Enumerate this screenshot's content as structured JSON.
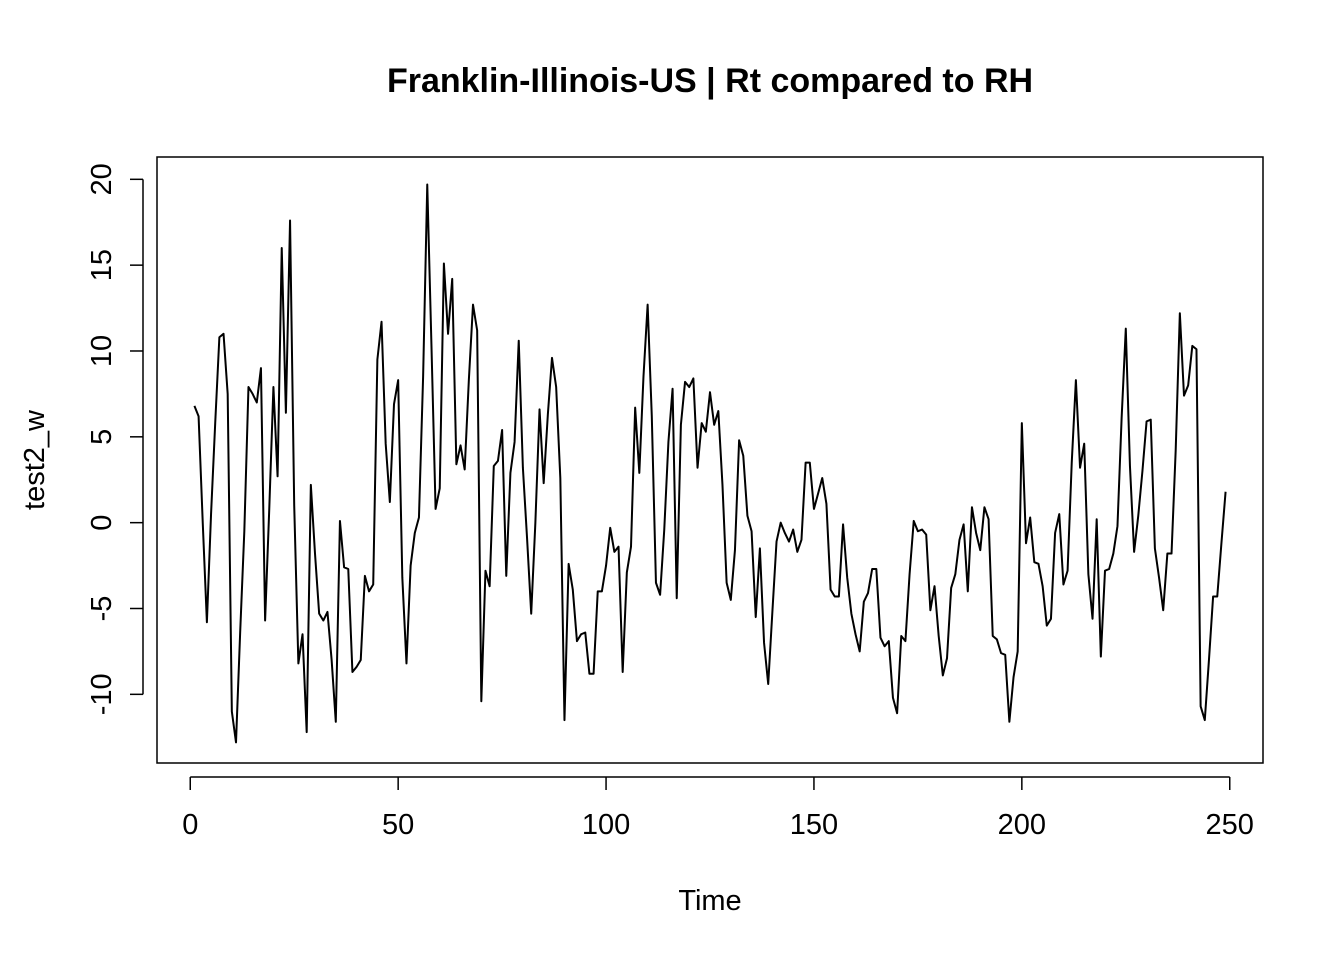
{
  "chart_data": {
    "type": "line",
    "title": "Franklin-Illinois-US | Rt compared to RH",
    "xlabel": "Time",
    "ylabel": "test2_w",
    "xlim": [
      -8,
      258
    ],
    "ylim": [
      -14,
      21.3
    ],
    "x_ticks": [
      0,
      50,
      100,
      150,
      200,
      250
    ],
    "y_ticks": [
      -10,
      -5,
      0,
      5,
      10,
      15,
      20
    ],
    "x_start": 1,
    "grid": false,
    "legend": "none",
    "line_color": "#000000",
    "series": [
      {
        "values": [
          6.8,
          6.2,
          0.0,
          -5.8,
          0.5,
          5.8,
          10.8,
          11.0,
          7.5,
          -11.0,
          -12.8,
          -6.4,
          -0.5,
          7.9,
          7.5,
          7.0,
          9.0,
          -5.7,
          0.8,
          7.9,
          2.7,
          16.0,
          6.4,
          17.6,
          1.0,
          -8.2,
          -6.5,
          -12.2,
          2.2,
          -1.8,
          -5.3,
          -5.7,
          -5.2,
          -8.0,
          -11.6,
          0.1,
          -2.6,
          -2.7,
          -8.7,
          -8.4,
          -8.0,
          -3.1,
          -4.0,
          -3.6,
          9.5,
          11.7,
          4.6,
          1.2,
          6.9,
          8.3,
          -3.2,
          -8.2,
          -2.5,
          -0.6,
          0.3,
          8.5,
          19.7,
          10.4,
          0.8,
          2.0,
          15.1,
          11.0,
          14.2,
          3.4,
          4.5,
          3.1,
          8.3,
          12.7,
          11.2,
          -10.4,
          -2.8,
          -3.7,
          3.3,
          3.6,
          5.4,
          -3.1,
          2.9,
          4.7,
          10.6,
          3.2,
          -0.9,
          -5.3,
          0.0,
          6.6,
          2.3,
          6.3,
          9.6,
          7.9,
          2.6,
          -11.5,
          -2.4,
          -3.9,
          -6.9,
          -6.5,
          -6.4,
          -8.8,
          -8.8,
          -4.0,
          -4.0,
          -2.5,
          -0.3,
          -1.7,
          -1.4,
          -8.7,
          -2.9,
          -1.4,
          6.7,
          2.9,
          8.5,
          12.7,
          6.2,
          -3.5,
          -4.2,
          -0.4,
          4.7,
          7.8,
          -4.4,
          5.7,
          8.2,
          7.9,
          8.4,
          3.2,
          5.8,
          5.3,
          7.6,
          5.7,
          6.5,
          2.2,
          -3.5,
          -4.5,
          -1.6,
          4.8,
          3.9,
          0.4,
          -0.5,
          -5.5,
          -1.5,
          -7.0,
          -9.4,
          -5.2,
          -1.1,
          0.0,
          -0.6,
          -1.1,
          -0.4,
          -1.7,
          -1.0,
          3.5,
          3.5,
          0.8,
          1.7,
          2.6,
          1.1,
          -3.9,
          -4.3,
          -4.3,
          -0.1,
          -3.2,
          -5.3,
          -6.5,
          -7.5,
          -4.6,
          -4.1,
          -2.7,
          -2.7,
          -6.7,
          -7.2,
          -6.9,
          -10.2,
          -11.1,
          -6.6,
          -6.9,
          -3.0,
          0.1,
          -0.5,
          -0.4,
          -0.7,
          -5.1,
          -3.7,
          -6.6,
          -8.9,
          -7.9,
          -3.8,
          -3.0,
          -1.0,
          -0.1,
          -4.0,
          0.9,
          -0.6,
          -1.6,
          0.9,
          0.2,
          -6.6,
          -6.8,
          -7.6,
          -7.7,
          -11.6,
          -9.0,
          -7.5,
          5.8,
          -1.2,
          0.3,
          -2.3,
          -2.4,
          -3.7,
          -6.0,
          -5.6,
          -0.6,
          0.5,
          -3.6,
          -2.8,
          3.5,
          8.3,
          3.2,
          4.6,
          -3.0,
          -5.6,
          0.2,
          -7.8,
          -2.8,
          -2.7,
          -1.8,
          -0.2,
          6.1,
          11.3,
          3.3,
          -1.7,
          0.4,
          3.0,
          5.9,
          6.0,
          -1.5,
          -3.2,
          -5.1,
          -1.8,
          -1.8,
          4.2,
          12.2,
          7.4,
          8.0,
          10.3,
          10.1,
          -10.7,
          -11.5,
          -8.0,
          -4.3,
          -4.3,
          -1.2,
          1.8
        ]
      }
    ]
  }
}
